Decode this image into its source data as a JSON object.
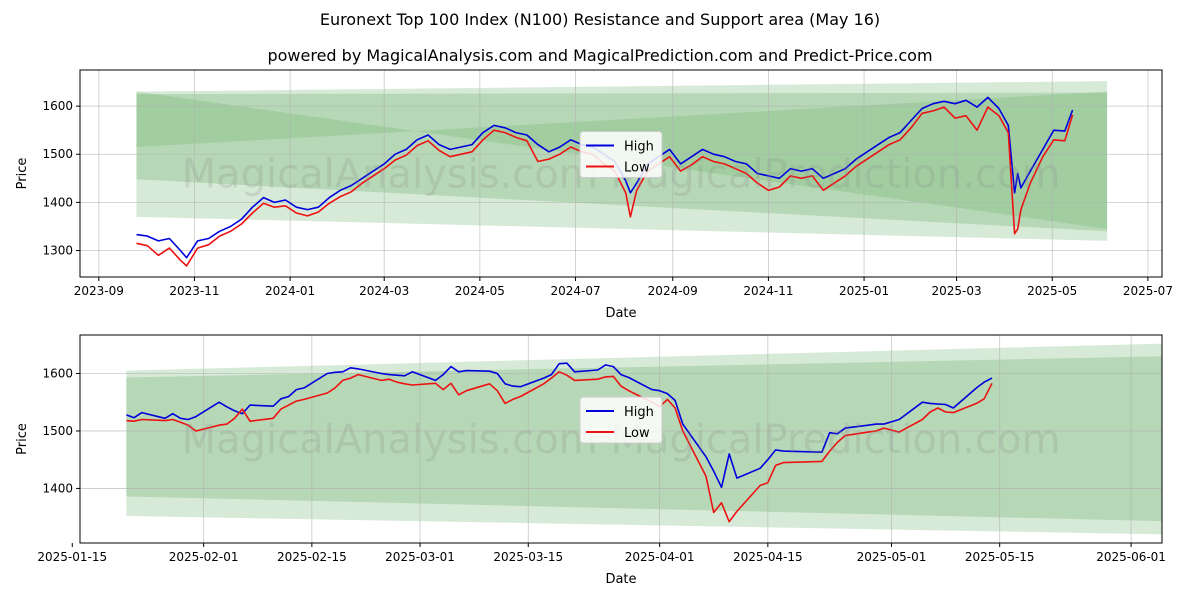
{
  "title": "Euronext Top 100 Index (N100) Resistance and Support area (May 16)",
  "subtitle": "powered by MagicalAnalysis.com and MagicalPrediction.com and Predict-Price.com",
  "watermark": "MagicalAnalysis.com    MagicalPrediction.com",
  "colors": {
    "high": "#0000dd",
    "low": "#ee1111",
    "band": "#228B22"
  },
  "chart_data": [
    {
      "type": "line",
      "xlabel": "Date",
      "ylabel": "Price",
      "xticks": [
        "2023-09",
        "2023-11",
        "2024-01",
        "2024-03",
        "2024-05",
        "2024-07",
        "2024-09",
        "2024-11",
        "2025-01",
        "2025-03",
        "2025-05",
        "2025-07"
      ],
      "yticks": [
        1300,
        1400,
        1500,
        1600
      ],
      "xlim": [
        "2023-08-20",
        "2025-07-10"
      ],
      "ylim": [
        1245,
        1675
      ],
      "bands": {
        "start": "2023-09-25",
        "end": "2025-06-05",
        "light_upper": [
          1630,
          1652
        ],
        "light_lower": [
          1370,
          1320
        ],
        "mid_upper": [
          1625,
          1628
        ],
        "mid_lower": [
          1448,
          1340
        ],
        "cross_a": [
          1515,
          1630,
          1630,
          1345
        ],
        "cross_b": [
          1515,
          1630,
          1345,
          1330
        ]
      },
      "legend": [
        "High",
        "Low"
      ],
      "series": [
        {
          "name": "High",
          "x": [
            "2023-09-25",
            "2023-10-02",
            "2023-10-09",
            "2023-10-16",
            "2023-10-23",
            "2023-10-27",
            "2023-11-03",
            "2023-11-10",
            "2023-11-17",
            "2023-11-24",
            "2023-12-01",
            "2023-12-08",
            "2023-12-15",
            "2023-12-22",
            "2023-12-29",
            "2024-01-05",
            "2024-01-12",
            "2024-01-19",
            "2024-01-26",
            "2024-02-02",
            "2024-02-09",
            "2024-02-16",
            "2024-02-23",
            "2024-03-01",
            "2024-03-08",
            "2024-03-15",
            "2024-03-22",
            "2024-03-29",
            "2024-04-05",
            "2024-04-12",
            "2024-04-19",
            "2024-04-26",
            "2024-05-03",
            "2024-05-10",
            "2024-05-17",
            "2024-05-24",
            "2024-05-31",
            "2024-06-07",
            "2024-06-14",
            "2024-06-21",
            "2024-06-28",
            "2024-07-05",
            "2024-07-12",
            "2024-07-19",
            "2024-07-26",
            "2024-08-02",
            "2024-08-05",
            "2024-08-09",
            "2024-08-16",
            "2024-08-23",
            "2024-08-30",
            "2024-09-06",
            "2024-09-13",
            "2024-09-20",
            "2024-09-27",
            "2024-10-04",
            "2024-10-11",
            "2024-10-18",
            "2024-10-25",
            "2024-11-01",
            "2024-11-08",
            "2024-11-15",
            "2024-11-22",
            "2024-11-29",
            "2024-12-06",
            "2024-12-13",
            "2024-12-20",
            "2024-12-27",
            "2025-01-03",
            "2025-01-10",
            "2025-01-17",
            "2025-01-24",
            "2025-01-31",
            "2025-02-07",
            "2025-02-14",
            "2025-02-21",
            "2025-02-28",
            "2025-03-07",
            "2025-03-14",
            "2025-03-21",
            "2025-03-28",
            "2025-04-03",
            "2025-04-07",
            "2025-04-09",
            "2025-04-11",
            "2025-04-17",
            "2025-04-25",
            "2025-05-02",
            "2025-05-09",
            "2025-05-14"
          ],
          "values": [
            1333,
            1330,
            1320,
            1325,
            1300,
            1285,
            1320,
            1325,
            1340,
            1350,
            1365,
            1390,
            1410,
            1400,
            1405,
            1390,
            1385,
            1390,
            1410,
            1425,
            1435,
            1450,
            1465,
            1480,
            1500,
            1510,
            1530,
            1540,
            1520,
            1510,
            1515,
            1520,
            1545,
            1560,
            1555,
            1545,
            1540,
            1520,
            1505,
            1515,
            1530,
            1520,
            1515,
            1500,
            1485,
            1445,
            1420,
            1440,
            1480,
            1495,
            1510,
            1480,
            1495,
            1510,
            1500,
            1495,
            1485,
            1480,
            1460,
            1455,
            1450,
            1470,
            1465,
            1470,
            1450,
            1460,
            1470,
            1490,
            1505,
            1520,
            1535,
            1545,
            1570,
            1595,
            1605,
            1610,
            1605,
            1612,
            1598,
            1618,
            1595,
            1560,
            1420,
            1460,
            1430,
            1465,
            1510,
            1550,
            1548,
            1592
          ]
        },
        {
          "name": "Low",
          "x": [
            "2023-09-25",
            "2023-10-02",
            "2023-10-09",
            "2023-10-16",
            "2023-10-23",
            "2023-10-27",
            "2023-11-03",
            "2023-11-10",
            "2023-11-17",
            "2023-11-24",
            "2023-12-01",
            "2023-12-08",
            "2023-12-15",
            "2023-12-22",
            "2023-12-29",
            "2024-01-05",
            "2024-01-12",
            "2024-01-19",
            "2024-01-26",
            "2024-02-02",
            "2024-02-09",
            "2024-02-16",
            "2024-02-23",
            "2024-03-01",
            "2024-03-08",
            "2024-03-15",
            "2024-03-22",
            "2024-03-29",
            "2024-04-05",
            "2024-04-12",
            "2024-04-19",
            "2024-04-26",
            "2024-05-03",
            "2024-05-10",
            "2024-05-17",
            "2024-05-24",
            "2024-05-31",
            "2024-06-07",
            "2024-06-14",
            "2024-06-21",
            "2024-06-28",
            "2024-07-05",
            "2024-07-12",
            "2024-07-19",
            "2024-07-26",
            "2024-08-02",
            "2024-08-05",
            "2024-08-09",
            "2024-08-16",
            "2024-08-23",
            "2024-08-30",
            "2024-09-06",
            "2024-09-13",
            "2024-09-20",
            "2024-09-27",
            "2024-10-04",
            "2024-10-11",
            "2024-10-18",
            "2024-10-25",
            "2024-11-01",
            "2024-11-08",
            "2024-11-15",
            "2024-11-22",
            "2024-11-29",
            "2024-12-06",
            "2024-12-13",
            "2024-12-20",
            "2024-12-27",
            "2025-01-03",
            "2025-01-10",
            "2025-01-17",
            "2025-01-24",
            "2025-01-31",
            "2025-02-07",
            "2025-02-14",
            "2025-02-21",
            "2025-02-28",
            "2025-03-07",
            "2025-03-14",
            "2025-03-21",
            "2025-03-28",
            "2025-04-03",
            "2025-04-07",
            "2025-04-09",
            "2025-04-11",
            "2025-04-17",
            "2025-04-25",
            "2025-05-02",
            "2025-05-09",
            "2025-05-14"
          ],
          "values": [
            1315,
            1310,
            1290,
            1305,
            1280,
            1268,
            1305,
            1312,
            1330,
            1340,
            1355,
            1378,
            1398,
            1390,
            1393,
            1378,
            1372,
            1380,
            1398,
            1412,
            1422,
            1440,
            1455,
            1470,
            1488,
            1498,
            1518,
            1528,
            1508,
            1495,
            1500,
            1505,
            1530,
            1550,
            1545,
            1535,
            1528,
            1485,
            1490,
            1500,
            1515,
            1505,
            1500,
            1480,
            1465,
            1420,
            1370,
            1425,
            1465,
            1480,
            1495,
            1465,
            1478,
            1495,
            1485,
            1480,
            1470,
            1460,
            1440,
            1425,
            1432,
            1455,
            1450,
            1455,
            1425,
            1440,
            1455,
            1475,
            1490,
            1505,
            1520,
            1530,
            1555,
            1585,
            1590,
            1598,
            1575,
            1580,
            1550,
            1598,
            1580,
            1545,
            1335,
            1345,
            1385,
            1440,
            1495,
            1530,
            1528,
            1582
          ]
        }
      ]
    },
    {
      "type": "line",
      "xlabel": "Date",
      "ylabel": "Price",
      "xticks": [
        "2025-01-15",
        "2025-02-01",
        "2025-02-15",
        "2025-03-01",
        "2025-03-15",
        "2025-04-01",
        "2025-04-15",
        "2025-05-01",
        "2025-05-15",
        "2025-06-01"
      ],
      "yticks": [
        1400,
        1500,
        1600
      ],
      "xlim": [
        "2025-01-16",
        "2025-06-05"
      ],
      "ylim": [
        1305,
        1667
      ],
      "bands": {
        "start": "2025-01-22",
        "end": "2025-06-05",
        "light_upper": [
          1605,
          1652
        ],
        "light_lower": [
          1352,
          1320
        ],
        "mid_upper": [
          1593,
          1630
        ],
        "mid_lower": [
          1386,
          1343
        ]
      },
      "legend": [
        "High",
        "Low"
      ],
      "series": [
        {
          "name": "High",
          "x": [
            "2025-01-22",
            "2025-01-23",
            "2025-01-24",
            "2025-01-27",
            "2025-01-28",
            "2025-01-29",
            "2025-01-30",
            "2025-01-31",
            "2025-02-03",
            "2025-02-04",
            "2025-02-05",
            "2025-02-06",
            "2025-02-07",
            "2025-02-10",
            "2025-02-11",
            "2025-02-12",
            "2025-02-13",
            "2025-02-14",
            "2025-02-17",
            "2025-02-18",
            "2025-02-19",
            "2025-02-20",
            "2025-02-21",
            "2025-02-24",
            "2025-02-25",
            "2025-02-26",
            "2025-02-27",
            "2025-02-28",
            "2025-03-03",
            "2025-03-04",
            "2025-03-05",
            "2025-03-06",
            "2025-03-07",
            "2025-03-10",
            "2025-03-11",
            "2025-03-12",
            "2025-03-13",
            "2025-03-14",
            "2025-03-17",
            "2025-03-18",
            "2025-03-19",
            "2025-03-20",
            "2025-03-21",
            "2025-03-24",
            "2025-03-25",
            "2025-03-26",
            "2025-03-27",
            "2025-03-28",
            "2025-03-31",
            "2025-04-01",
            "2025-04-02",
            "2025-04-03",
            "2025-04-04",
            "2025-04-07",
            "2025-04-08",
            "2025-04-09",
            "2025-04-10",
            "2025-04-11",
            "2025-04-14",
            "2025-04-15",
            "2025-04-16",
            "2025-04-17",
            "2025-04-22",
            "2025-04-23",
            "2025-04-24",
            "2025-04-25",
            "2025-04-28",
            "2025-04-29",
            "2025-04-30",
            "2025-05-02",
            "2025-05-05",
            "2025-05-06",
            "2025-05-07",
            "2025-05-08",
            "2025-05-09",
            "2025-05-12",
            "2025-05-13",
            "2025-05-14"
          ],
          "values": [
            1528,
            1523,
            1532,
            1522,
            1530,
            1522,
            1520,
            1525,
            1550,
            1542,
            1535,
            1530,
            1545,
            1543,
            1556,
            1560,
            1572,
            1575,
            1600,
            1602,
            1603,
            1610,
            1608,
            1600,
            1598,
            1597,
            1596,
            1603,
            1588,
            1598,
            1612,
            1603,
            1605,
            1604,
            1600,
            1582,
            1578,
            1577,
            1592,
            1598,
            1617,
            1618,
            1603,
            1606,
            1615,
            1612,
            1598,
            1593,
            1572,
            1570,
            1565,
            1553,
            1512,
            1455,
            1430,
            1402,
            1460,
            1418,
            1435,
            1450,
            1467,
            1465,
            1463,
            1497,
            1495,
            1505,
            1510,
            1512,
            1512,
            1520,
            1550,
            1548,
            1547,
            1546,
            1540,
            1575,
            1585,
            1592
          ]
        },
        {
          "name": "Low",
          "x": [
            "2025-01-22",
            "2025-01-23",
            "2025-01-24",
            "2025-01-27",
            "2025-01-28",
            "2025-01-29",
            "2025-01-30",
            "2025-01-31",
            "2025-02-03",
            "2025-02-04",
            "2025-02-05",
            "2025-02-06",
            "2025-02-07",
            "2025-02-10",
            "2025-02-11",
            "2025-02-12",
            "2025-02-13",
            "2025-02-14",
            "2025-02-17",
            "2025-02-18",
            "2025-02-19",
            "2025-02-20",
            "2025-02-21",
            "2025-02-24",
            "2025-02-25",
            "2025-02-26",
            "2025-02-27",
            "2025-02-28",
            "2025-03-03",
            "2025-03-04",
            "2025-03-05",
            "2025-03-06",
            "2025-03-07",
            "2025-03-10",
            "2025-03-11",
            "2025-03-12",
            "2025-03-13",
            "2025-03-14",
            "2025-03-17",
            "2025-03-18",
            "2025-03-19",
            "2025-03-20",
            "2025-03-21",
            "2025-03-24",
            "2025-03-25",
            "2025-03-26",
            "2025-03-27",
            "2025-03-28",
            "2025-03-31",
            "2025-04-01",
            "2025-04-02",
            "2025-04-03",
            "2025-04-04",
            "2025-04-07",
            "2025-04-08",
            "2025-04-09",
            "2025-04-10",
            "2025-04-11",
            "2025-04-14",
            "2025-04-15",
            "2025-04-16",
            "2025-04-17",
            "2025-04-22",
            "2025-04-23",
            "2025-04-24",
            "2025-04-25",
            "2025-04-28",
            "2025-04-29",
            "2025-04-30",
            "2025-05-02",
            "2025-05-05",
            "2025-05-06",
            "2025-05-07",
            "2025-05-08",
            "2025-05-09",
            "2025-05-12",
            "2025-05-13",
            "2025-05-14"
          ],
          "values": [
            1518,
            1517,
            1520,
            1518,
            1520,
            1515,
            1510,
            1500,
            1510,
            1512,
            1522,
            1538,
            1517,
            1522,
            1538,
            1545,
            1552,
            1555,
            1566,
            1575,
            1588,
            1592,
            1598,
            1588,
            1590,
            1585,
            1582,
            1580,
            1583,
            1572,
            1583,
            1563,
            1570,
            1582,
            1570,
            1548,
            1555,
            1560,
            1582,
            1592,
            1603,
            1597,
            1588,
            1590,
            1594,
            1595,
            1578,
            1570,
            1550,
            1542,
            1555,
            1540,
            1500,
            1421,
            1358,
            1375,
            1342,
            1360,
            1405,
            1410,
            1440,
            1445,
            1447,
            1465,
            1480,
            1492,
            1498,
            1500,
            1505,
            1498,
            1520,
            1533,
            1540,
            1533,
            1532,
            1548,
            1556,
            1583
          ]
        }
      ]
    }
  ]
}
